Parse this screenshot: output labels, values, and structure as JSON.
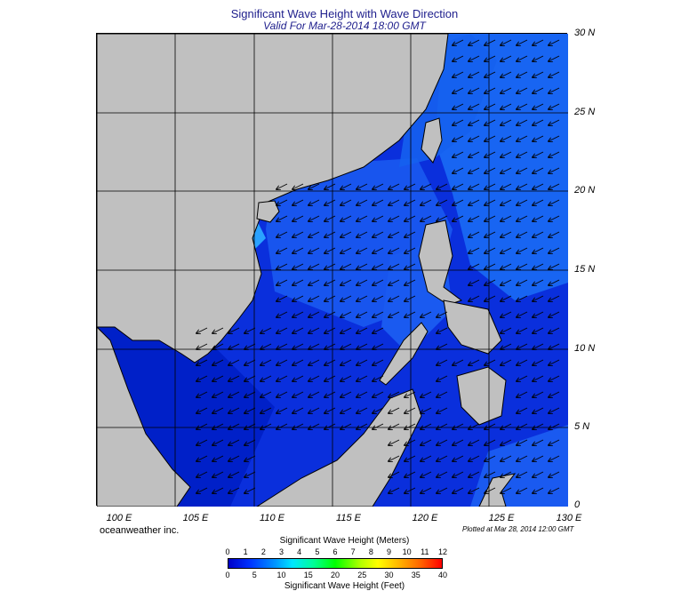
{
  "header": {
    "title": "Significant Wave Height with Wave Direction",
    "subtitle": "Valid For Mar-28-2014 18:00 GMT"
  },
  "map": {
    "lat_labels": [
      "30 N",
      "25 N",
      "20 N",
      "15 N",
      "10 N",
      "5 N",
      "0"
    ],
    "lon_labels": [
      "100 E",
      "105 E",
      "110 E",
      "115 E",
      "120 E",
      "125 E",
      "130 E"
    ],
    "land_color": "#c0c0c0",
    "sea_color_dark": "#0028dc",
    "sea_color_light": "#1e78ff",
    "wave_direction": "from NE (arrows point SW)"
  },
  "footer": {
    "credit": "oceanweather inc.",
    "plotted": "Plotted at Mar 28, 2014 12:00 GMT"
  },
  "colorbar": {
    "title_meters": "Significant Wave Height (Meters)",
    "title_feet": "Significant Wave Height (Feet)",
    "meters_ticks": [
      "0",
      "1",
      "2",
      "3",
      "4",
      "5",
      "6",
      "7",
      "8",
      "9",
      "10",
      "11",
      "12"
    ],
    "feet_ticks": [
      "0",
      "5",
      "10",
      "15",
      "20",
      "25",
      "30",
      "35",
      "40"
    ]
  }
}
